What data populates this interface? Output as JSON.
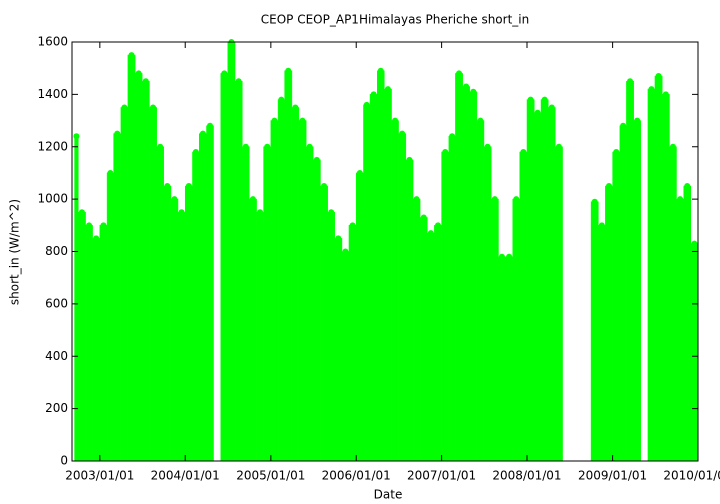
{
  "chart_data": {
    "type": "area-dense",
    "title": "CEOP CEOP_AP1Himalayas Pheriche  short_in",
    "x_label": "Date",
    "y_label": "short_in (W/m^2)",
    "color": "#00ff00",
    "x": [
      "2002/09/15",
      "2002/10/01",
      "2002/11/01",
      "2002/12/01",
      "2003/01/01",
      "2003/02/01",
      "2003/03/01",
      "2003/04/01",
      "2003/05/01",
      "2003/06/01",
      "2003/07/01",
      "2003/08/01",
      "2003/09/01",
      "2003/10/01",
      "2003/11/01",
      "2003/12/01",
      "2004/01/01",
      "2004/02/01",
      "2004/03/01",
      "2004/04/01",
      "2004/05/01",
      "2004/06/01",
      "2004/07/01",
      "2004/08/01",
      "2004/09/01",
      "2004/10/01",
      "2004/11/01",
      "2004/12/01",
      "2005/01/01",
      "2005/02/01",
      "2005/03/01",
      "2005/04/01",
      "2005/05/01",
      "2005/06/01",
      "2005/07/01",
      "2005/08/01",
      "2005/09/01",
      "2005/10/01",
      "2005/11/01",
      "2005/12/01",
      "2006/01/01",
      "2006/02/01",
      "2006/03/01",
      "2006/04/01",
      "2006/05/01",
      "2006/06/01",
      "2006/07/01",
      "2006/08/01",
      "2006/09/01",
      "2006/10/01",
      "2006/11/01",
      "2006/12/01",
      "2007/01/01",
      "2007/02/01",
      "2007/03/01",
      "2007/04/01",
      "2007/05/01",
      "2007/06/01",
      "2007/07/01",
      "2007/08/01",
      "2007/09/01",
      "2007/10/01",
      "2007/11/01",
      "2007/12/01",
      "2008/01/01",
      "2008/02/01",
      "2008/03/01",
      "2008/04/01",
      "2008/05/01",
      "2008/06/01",
      "2008/07/01",
      "2008/08/01",
      "2008/09/01",
      "2008/10/01",
      "2008/11/01",
      "2008/12/01",
      "2009/01/01",
      "2009/02/01",
      "2009/03/01",
      "2009/04/01",
      "2009/05/01",
      "2009/06/01",
      "2009/07/01",
      "2009/08/01",
      "2009/09/01",
      "2009/10/01",
      "2009/11/01",
      "2009/12/01"
    ],
    "values": [
      1240,
      950,
      900,
      850,
      900,
      1100,
      1250,
      1350,
      1550,
      1480,
      1450,
      1350,
      1200,
      1050,
      1000,
      950,
      1050,
      1180,
      1250,
      1280,
      null,
      1480,
      1600,
      1450,
      1200,
      1000,
      950,
      1200,
      1300,
      1380,
      1490,
      1350,
      1300,
      1200,
      1150,
      1050,
      950,
      850,
      800,
      900,
      1100,
      1360,
      1400,
      1490,
      1420,
      1300,
      1250,
      1150,
      1000,
      930,
      870,
      900,
      1180,
      1240,
      1480,
      1430,
      1410,
      1300,
      1200,
      1000,
      780,
      780,
      1000,
      1180,
      1380,
      1330,
      1380,
      1350,
      1200,
      null,
      null,
      null,
      null,
      990,
      900,
      1050,
      1180,
      1280,
      1450,
      1300,
      null,
      1420,
      1470,
      1400,
      1200,
      1000,
      1050,
      830
    ],
    "xlim": [
      "2002/09/04",
      "2010/01/01"
    ],
    "xticks": [
      "2003/01/01",
      "2004/01/01",
      "2005/01/01",
      "2006/01/01",
      "2007/01/01",
      "2008/01/01",
      "2009/01/01",
      "2010/01/01"
    ],
    "ylim": [
      0,
      1600
    ],
    "yticks": [
      0,
      200,
      400,
      600,
      800,
      1000,
      1200,
      1400,
      1600
    ]
  }
}
